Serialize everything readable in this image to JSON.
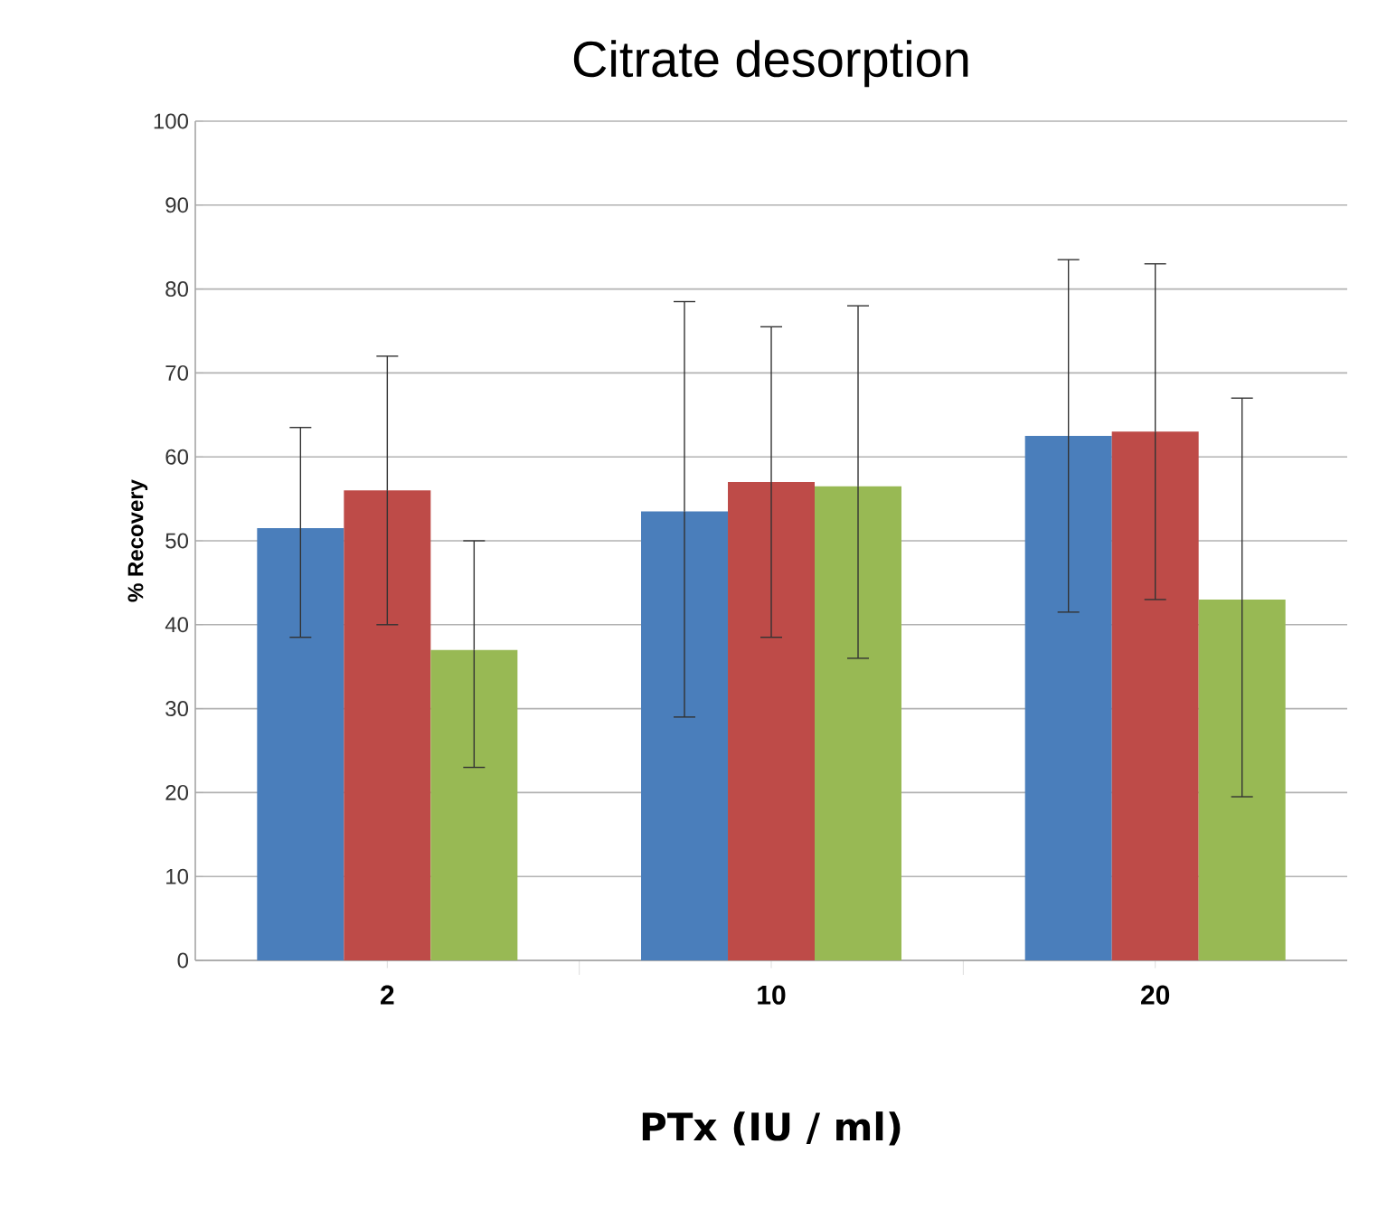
{
  "chart_data": {
    "type": "bar",
    "title": "Citrate desorption",
    "xlabel": "PTx (IU / ml)",
    "ylabel": "% Recovery",
    "categories": [
      "2",
      "10",
      "20"
    ],
    "series": [
      {
        "color": "#4a7ebb",
        "values": [
          51.5,
          53.5,
          62.5
        ],
        "errors": [
          [
            38.5,
            63.5
          ],
          [
            29,
            78.5
          ],
          [
            41.5,
            83.5
          ]
        ]
      },
      {
        "color": "#be4b48",
        "values": [
          56,
          57,
          63
        ],
        "errors": [
          [
            40,
            72
          ],
          [
            38.5,
            75.5
          ],
          [
            43,
            83
          ]
        ]
      },
      {
        "color": "#98b954",
        "values": [
          37,
          56.5,
          43
        ],
        "errors": [
          [
            23,
            50
          ],
          [
            36,
            78
          ],
          [
            19.5,
            67
          ]
        ]
      }
    ],
    "ylim": [
      0,
      100
    ],
    "yticks": [
      0,
      10,
      20,
      30,
      40,
      50,
      60,
      70,
      80,
      90,
      100
    ],
    "grid": "y"
  }
}
